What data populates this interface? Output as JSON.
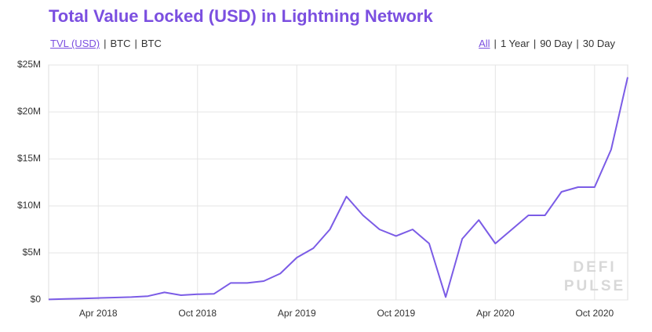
{
  "chart_data": {
    "type": "line",
    "title": "Total Value Locked (USD) in Lightning Network",
    "left_controls": [
      "TVL (USD)",
      "BTC",
      "BTC"
    ],
    "right_controls": [
      "All",
      "1 Year",
      "90 Day",
      "30 Day"
    ],
    "separator": "|",
    "watermark": [
      "DEFI",
      "PULSE"
    ],
    "x": [
      "2018-01",
      "2018-02",
      "2018-03",
      "2018-04",
      "2018-05",
      "2018-06",
      "2018-07",
      "2018-08",
      "2018-09",
      "2018-10",
      "2018-11",
      "2018-12",
      "2019-01",
      "2019-02",
      "2019-03",
      "2019-04",
      "2019-05",
      "2019-06",
      "2019-07",
      "2019-08",
      "2019-09",
      "2019-10",
      "2019-11",
      "2019-12",
      "2020-01",
      "2020-02",
      "2020-03",
      "2020-04",
      "2020-05",
      "2020-06",
      "2020-07",
      "2020-08",
      "2020-09",
      "2020-10",
      "2020-11",
      "2020-12"
    ],
    "series": [
      {
        "name": "TVL (USD)",
        "color": "#7b5ce6",
        "values": [
          0.05,
          0.1,
          0.15,
          0.2,
          0.25,
          0.3,
          0.4,
          0.8,
          0.5,
          0.6,
          0.65,
          1.8,
          1.8,
          2.0,
          2.8,
          4.5,
          5.5,
          7.5,
          11.0,
          9.0,
          7.5,
          6.8,
          7.5,
          6.0,
          0.3,
          6.5,
          8.5,
          6.0,
          7.5,
          9.0,
          9.0,
          11.5,
          12.0,
          12.0,
          16.0,
          23.7
        ]
      }
    ],
    "xlim": [
      "2018-01",
      "2020-12"
    ],
    "xticks": [
      {
        "value": "2018-04",
        "label": "Apr 2018"
      },
      {
        "value": "2018-10",
        "label": "Oct 2018"
      },
      {
        "value": "2019-04",
        "label": "Apr 2019"
      },
      {
        "value": "2019-10",
        "label": "Oct 2019"
      },
      {
        "value": "2020-04",
        "label": "Apr 2020"
      },
      {
        "value": "2020-10",
        "label": "Oct 2020"
      }
    ],
    "ylim": [
      0,
      25
    ],
    "yticks": [
      {
        "value": 0,
        "label": "$0"
      },
      {
        "value": 5,
        "label": "$5M"
      },
      {
        "value": 10,
        "label": "$10M"
      },
      {
        "value": 15,
        "label": "$15M"
      },
      {
        "value": 20,
        "label": "$20M"
      },
      {
        "value": 25,
        "label": "$25M"
      }
    ],
    "grid": true
  }
}
